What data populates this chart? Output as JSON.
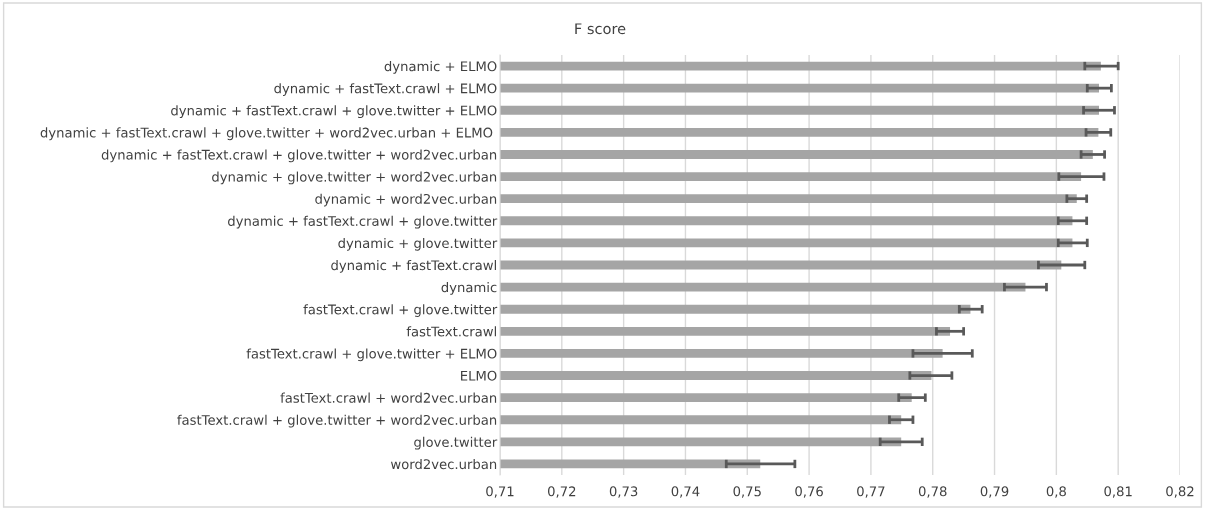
{
  "chart_data": {
    "type": "bar",
    "orientation": "horizontal",
    "title": "F score",
    "categories": [
      "dynamic + ELMO",
      "dynamic + fastText.crawl + ELMO",
      "dynamic + fastText.crawl + glove.twitter + ELMO",
      "dynamic + fastText.crawl + glove.twitter + word2vec.urban + ELMO ",
      "dynamic + fastText.crawl + glove.twitter + word2vec.urban",
      "dynamic + glove.twitter + word2vec.urban",
      "dynamic + word2vec.urban",
      "dynamic + fastText.crawl + glove.twitter",
      "dynamic + glove.twitter",
      "dynamic + fastText.crawl",
      "dynamic",
      "fastText.crawl + glove.twitter",
      "fastText.crawl",
      "fastText.crawl + glove.twitter + ELMO",
      "ELMO",
      "fastText.crawl + word2vec.urban",
      "fastText.crawl + glove.twitter + word2vec.urban",
      "glove.twitter",
      "word2vec.urban"
    ],
    "values": [
      0.8072,
      0.8069,
      0.8069,
      0.8068,
      0.8059,
      0.804,
      0.8033,
      0.8026,
      0.8026,
      0.8008,
      0.795,
      0.7861,
      0.7828,
      0.7816,
      0.7798,
      0.7766,
      0.7749,
      0.7749,
      0.7521
    ],
    "errors": [
      [
        0.8046,
        0.81
      ],
      [
        0.805,
        0.8089
      ],
      [
        0.8044,
        0.8094
      ],
      [
        0.8048,
        0.8088
      ],
      [
        0.804,
        0.8078
      ],
      [
        0.8004,
        0.8077
      ],
      [
        0.8017,
        0.8049
      ],
      [
        0.8003,
        0.8049
      ],
      [
        0.8003,
        0.805
      ],
      [
        0.7971,
        0.8046
      ],
      [
        0.7916,
        0.7984
      ],
      [
        0.7843,
        0.788
      ],
      [
        0.7806,
        0.785
      ],
      [
        0.7768,
        0.7864
      ],
      [
        0.7763,
        0.7831
      ],
      [
        0.7745,
        0.7788
      ],
      [
        0.773,
        0.7768
      ],
      [
        0.7715,
        0.7783
      ],
      [
        0.7466,
        0.7577
      ]
    ],
    "color": "#a5a5a5",
    "xlim": [
      0.71,
      0.82
    ],
    "xticks": [
      {
        "value": 0.71,
        "label": "0,71"
      },
      {
        "value": 0.72,
        "label": "0,72"
      },
      {
        "value": 0.73,
        "label": "0,73"
      },
      {
        "value": 0.74,
        "label": "0,74"
      },
      {
        "value": 0.75,
        "label": "0,75"
      },
      {
        "value": 0.76,
        "label": "0,76"
      },
      {
        "value": 0.77,
        "label": "0,77"
      },
      {
        "value": 0.78,
        "label": "0,78"
      },
      {
        "value": 0.79,
        "label": "0,79"
      },
      {
        "value": 0.8,
        "label": "0,8"
      },
      {
        "value": 0.81,
        "label": "0,81"
      },
      {
        "value": 0.82,
        "label": "0,82"
      }
    ],
    "grid": "x",
    "legend": false
  }
}
